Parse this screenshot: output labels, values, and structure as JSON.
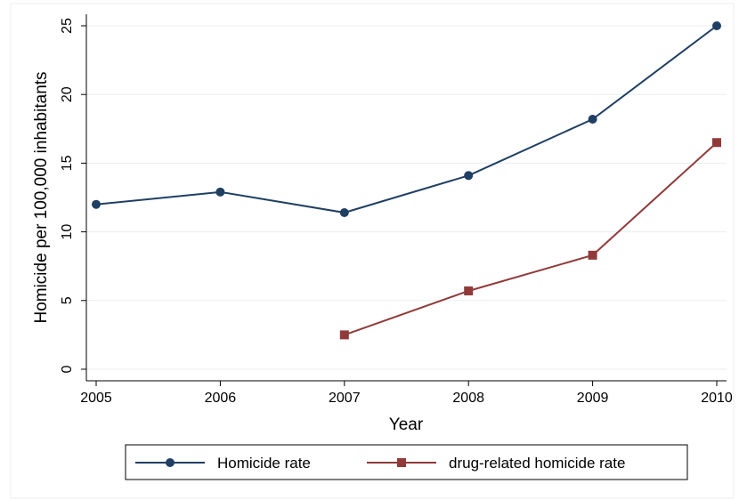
{
  "chart_data": {
    "type": "line",
    "title": "",
    "xlabel": "Year",
    "ylabel": "Homicide per 100,000 inhabitants",
    "x": [
      2005,
      2006,
      2007,
      2008,
      2009,
      2010
    ],
    "xticks": [
      "2005",
      "2006",
      "2007",
      "2008",
      "2009",
      "2010"
    ],
    "yticks": [
      "0",
      "5",
      "10",
      "15",
      "20",
      "25"
    ],
    "ylim": [
      0,
      25
    ],
    "grid": true,
    "legend_position": "bottom",
    "series": [
      {
        "name": "Homicide rate",
        "color": "#1f3f63",
        "marker": "circle",
        "values": [
          12.0,
          12.9,
          11.4,
          14.1,
          18.2,
          25.0
        ]
      },
      {
        "name": "drug-related homicide rate",
        "color": "#903a3a",
        "marker": "square",
        "values": [
          null,
          null,
          2.5,
          5.7,
          8.3,
          16.5
        ]
      }
    ]
  }
}
